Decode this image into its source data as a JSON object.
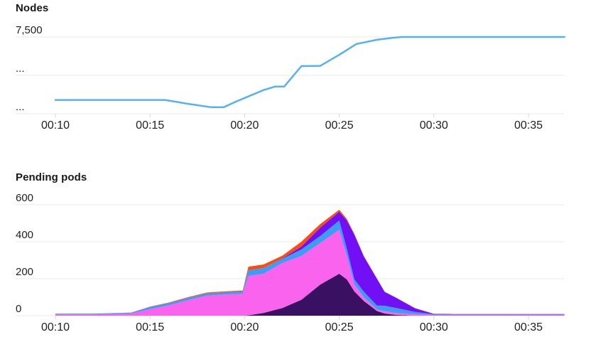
{
  "page": {
    "background": "#ffffff",
    "grid_color": "#e9e9e9",
    "tick_color": "#d4d4d4",
    "label_color": "#1f1f23"
  },
  "chart_data": [
    {
      "id": "nodes",
      "type": "line",
      "title": "Nodes",
      "color": "#55b1f3",
      "x_ticks": [
        {
          "label": "00:10",
          "t": 10
        },
        {
          "label": "00:15",
          "t": 15
        },
        {
          "label": "00:20",
          "t": 20
        },
        {
          "label": "00:25",
          "t": 25
        },
        {
          "label": "00:30",
          "t": 30
        },
        {
          "label": "00:35",
          "t": 35
        }
      ],
      "y_ticks": [
        {
          "label": "7,500",
          "value": 7500
        },
        {
          "label": "...",
          "value": 5000
        },
        {
          "label": "...",
          "value": 2500
        }
      ],
      "x_range": [
        10,
        36.9
      ],
      "y_range": [
        2500,
        7500
      ],
      "points": [
        [
          10,
          3400
        ],
        [
          15.8,
          3400
        ],
        [
          17,
          3150
        ],
        [
          18.2,
          2930
        ],
        [
          18.9,
          2930
        ],
        [
          19.5,
          3270
        ],
        [
          20.1,
          3580
        ],
        [
          21,
          4040
        ],
        [
          21.6,
          4270
        ],
        [
          22.1,
          4280
        ],
        [
          23,
          5600
        ],
        [
          24,
          5620
        ],
        [
          25,
          6340
        ],
        [
          25.9,
          7040
        ],
        [
          27,
          7320
        ],
        [
          27.8,
          7440
        ],
        [
          28.3,
          7500
        ],
        [
          36.9,
          7500
        ]
      ]
    },
    {
      "id": "pending-pods",
      "type": "stacked_area",
      "title": "Pending pods",
      "x_ticks": [
        {
          "label": "00:10",
          "t": 10
        },
        {
          "label": "00:15",
          "t": 15
        },
        {
          "label": "00:20",
          "t": 20
        },
        {
          "label": "00:25",
          "t": 25
        },
        {
          "label": "00:30",
          "t": 30
        },
        {
          "label": "00:35",
          "t": 35
        }
      ],
      "y_ticks": [
        {
          "label": "600",
          "value": 600
        },
        {
          "label": "400",
          "value": 400
        },
        {
          "label": "200",
          "value": 200
        },
        {
          "label": "0",
          "value": 0
        }
      ],
      "x_range": [
        10,
        36.9
      ],
      "y_range": [
        0,
        600
      ],
      "x": [
        10,
        12,
        14,
        15,
        16,
        17,
        18,
        19,
        19.9,
        20.2,
        21,
        22,
        23,
        24,
        25,
        25.4,
        25.8,
        26.3,
        27,
        27.4,
        28,
        29,
        30,
        31,
        36.9
      ],
      "series": [
        {
          "name": "dark-purple",
          "color": "#3a1162",
          "values": [
            0,
            0,
            0,
            0,
            0,
            0,
            0,
            0,
            0,
            2,
            15,
            42,
            86,
            169,
            227,
            196,
            131,
            80,
            25,
            12,
            4,
            0,
            0,
            0,
            0
          ]
        },
        {
          "name": "magenta",
          "color": "#fa63ee",
          "values": [
            7,
            7,
            12,
            35,
            56,
            84,
            108,
            115,
            119,
            213,
            212,
            243,
            237,
            225,
            238,
            127,
            38,
            19,
            8,
            12,
            11,
            8,
            4,
            4,
            4
          ]
        },
        {
          "name": "blue",
          "color": "#3f9cf5",
          "values": [
            4,
            4,
            5,
            12,
            12,
            12,
            12,
            12,
            12,
            31,
            31,
            23,
            35,
            38,
            50,
            39,
            27,
            31,
            22,
            30,
            27,
            12,
            4,
            3,
            3
          ]
        },
        {
          "name": "violet",
          "color": "#7110f4",
          "values": [
            0,
            0,
            0,
            0,
            0,
            0,
            0,
            0,
            0,
            0,
            0,
            2,
            16,
            45,
            47,
            153,
            242,
            190,
            143,
            75,
            55,
            20,
            2,
            2,
            2
          ]
        },
        {
          "name": "orange",
          "color": "#fd4a10",
          "values": [
            0,
            0,
            0,
            2,
            3,
            4,
            5,
            5,
            5,
            19,
            19,
            15,
            26,
            19,
            11,
            8,
            4,
            3,
            2,
            1,
            1,
            1,
            0,
            0,
            0
          ]
        }
      ]
    }
  ]
}
